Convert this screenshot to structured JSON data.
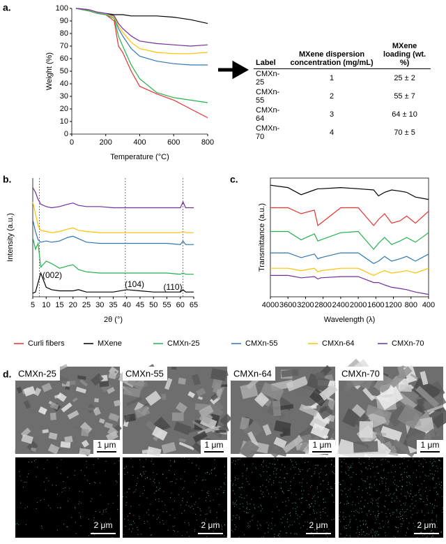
{
  "panel_labels": [
    "a.",
    "b.",
    "c.",
    "d."
  ],
  "chart_data": [
    {
      "type": "line",
      "xlabel": "Temperature (°C)",
      "ylabel": "Weight (%)",
      "x": [
        25,
        100,
        150,
        200,
        250,
        275,
        300,
        350,
        400,
        500,
        600,
        700,
        800
      ],
      "xlim": [
        0,
        800
      ],
      "xticks": [
        0,
        200,
        400,
        600,
        800
      ],
      "ylim": [
        0,
        100
      ],
      "yticks": [
        0,
        10,
        20,
        30,
        40,
        50,
        60,
        70,
        80,
        90,
        100
      ],
      "series": [
        {
          "name": "Curli fibers",
          "color": "#e8312f",
          "values": [
            100,
            98,
            96,
            95,
            90,
            70,
            65,
            50,
            38,
            32,
            27,
            20,
            13
          ]
        },
        {
          "name": "MXene",
          "color": "#000000",
          "values": [
            100,
            99,
            97,
            96,
            95,
            95,
            95,
            94,
            94,
            94,
            93,
            91,
            88
          ]
        },
        {
          "name": "CMXn-25",
          "color": "#22b14c",
          "values": [
            100,
            98,
            96,
            95,
            92,
            78,
            70,
            55,
            44,
            33,
            29,
            27,
            25
          ]
        },
        {
          "name": "CMXn-55",
          "color": "#2e75b6",
          "values": [
            100,
            99,
            97,
            96,
            93,
            84,
            78,
            68,
            62,
            58,
            56,
            55,
            55
          ]
        },
        {
          "name": "CMXn-64",
          "color": "#ffc000",
          "values": [
            100,
            99,
            97,
            96,
            93,
            86,
            81,
            73,
            68,
            65,
            64,
            64,
            65
          ]
        },
        {
          "name": "CMXn-70",
          "color": "#7030a0",
          "values": [
            100,
            99,
            97,
            96,
            94,
            88,
            84,
            78,
            74,
            72,
            71,
            70,
            71
          ]
        }
      ]
    },
    {
      "type": "line",
      "xlabel": "2θ (°)",
      "ylabel": "Intensity (a.u.)",
      "x": [
        5,
        6,
        7,
        8,
        10,
        12,
        15,
        18,
        20,
        22,
        25,
        30,
        35,
        40,
        45,
        50,
        55,
        60,
        61,
        62,
        65
      ],
      "xlim": [
        5,
        65
      ],
      "xticks": [
        5,
        10,
        15,
        20,
        25,
        30,
        35,
        40,
        45,
        50,
        55,
        60,
        65
      ],
      "ylim": [
        0,
        100
      ],
      "vlines": [
        7.5,
        39.5,
        61
      ],
      "annotations": [
        "(002)",
        "(104)",
        "(110)"
      ],
      "series": [
        {
          "name": "CMXn-70",
          "color": "#7030a0",
          "values": [
            92,
            88,
            82,
            78,
            76,
            75,
            76,
            78,
            79,
            77,
            76,
            76,
            75,
            75,
            75,
            75,
            75,
            75,
            80,
            75,
            75
          ]
        },
        {
          "name": "CMXn-64",
          "color": "#ffc000",
          "values": [
            80,
            70,
            60,
            56,
            55,
            54,
            55,
            57,
            58,
            56,
            55,
            54,
            54,
            54,
            54,
            54,
            54,
            54,
            55,
            54,
            54
          ]
        },
        {
          "name": "CMXn-55",
          "color": "#2e75b6",
          "values": [
            65,
            55,
            48,
            46,
            47,
            46,
            47,
            50,
            51,
            49,
            46,
            45,
            45,
            45,
            45,
            45,
            45,
            44,
            47,
            44,
            44
          ]
        },
        {
          "name": "CMXn-25",
          "color": "#22b14c",
          "values": [
            50,
            40,
            45,
            25,
            30,
            28,
            24,
            26,
            27,
            23,
            21,
            20,
            20,
            20,
            20,
            20,
            20,
            19,
            20,
            19,
            19
          ]
        },
        {
          "name": "MXene",
          "color": "#000000",
          "values": [
            3,
            4,
            12,
            20,
            8,
            6,
            5,
            5,
            5,
            6,
            4,
            4,
            4,
            6,
            5,
            4,
            4,
            4,
            6,
            4,
            4
          ]
        }
      ]
    },
    {
      "type": "line",
      "xlabel": "Wavelength (λ)",
      "ylabel": "Transmittance (a.u.)",
      "frame": true,
      "x": [
        4000,
        3600,
        3300,
        3000,
        2920,
        2850,
        2400,
        2000,
        1650,
        1540,
        1400,
        1240,
        1050,
        900,
        700,
        400
      ],
      "xlim": [
        4000,
        400
      ],
      "xticks": [
        4000,
        3600,
        3200,
        2800,
        2400,
        2000,
        1600,
        1200,
        800,
        400
      ],
      "ylim": [
        0,
        100
      ],
      "series": [
        {
          "name": "MXene",
          "color": "#000000",
          "values": [
            94,
            92,
            86,
            90,
            91,
            91,
            92,
            91,
            90,
            85,
            88,
            90,
            89,
            88,
            84,
            82
          ]
        },
        {
          "name": "Curli fibers",
          "color": "#e8312f",
          "values": [
            75,
            75,
            70,
            73,
            60,
            62,
            75,
            75,
            60,
            65,
            70,
            62,
            64,
            68,
            62,
            72
          ]
        },
        {
          "name": "CMXn-25",
          "color": "#22b14c",
          "values": [
            55,
            55,
            48,
            53,
            47,
            48,
            54,
            55,
            40,
            45,
            50,
            44,
            47,
            50,
            46,
            54
          ]
        },
        {
          "name": "CMXn-55",
          "color": "#2e75b6",
          "values": [
            37,
            37,
            33,
            36,
            32,
            33,
            37,
            37,
            28,
            30,
            34,
            30,
            32,
            34,
            30,
            36
          ]
        },
        {
          "name": "CMXn-64",
          "color": "#ffc000",
          "values": [
            24,
            24,
            22,
            24,
            21,
            22,
            24,
            24,
            18,
            20,
            22,
            20,
            21,
            22,
            20,
            24
          ]
        },
        {
          "name": "CMXn-70",
          "color": "#7030a0",
          "values": [
            18,
            18,
            16,
            17,
            15,
            16,
            17,
            17,
            12,
            12,
            10,
            8,
            7,
            6,
            4,
            2
          ]
        }
      ]
    }
  ],
  "table": {
    "headers": [
      "Label",
      "MXene dispersion concentration (mg/mL)",
      "MXene loading (wt. %)"
    ],
    "rows": [
      [
        "CMXn-25",
        "1",
        "25 ± 2"
      ],
      [
        "CMXn-55",
        "2",
        "55 ± 7"
      ],
      [
        "CMXn-64",
        "3",
        "64 ± 10"
      ],
      [
        "CMXn-70",
        "4",
        "70 ± 5"
      ]
    ]
  },
  "sem": [
    {
      "label": "CMXn-25",
      "scale_top": "1 μm",
      "scale_bottom": "2 μm"
    },
    {
      "label": "CMXn-55",
      "scale_top": "1 μm",
      "scale_bottom": "2 μm"
    },
    {
      "label": "CMXn-64",
      "scale_top": "1 μm",
      "scale_bottom": "2 μm"
    },
    {
      "label": "CMXn-70",
      "scale_top": "1 μm",
      "scale_bottom": "2 μm"
    }
  ]
}
